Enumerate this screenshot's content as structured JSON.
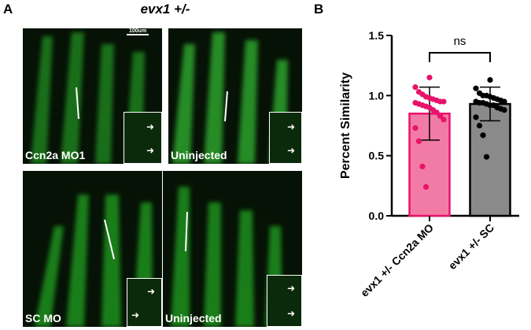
{
  "figure": {
    "panel_a_letter": "A",
    "panel_b_letter": "B",
    "panel_a_title": "evx1 +/-",
    "scale_bar_label": "100um",
    "images": [
      {
        "label": "Ccn2a MO1"
      },
      {
        "label": "Uninjected"
      },
      {
        "label": "SC MO"
      },
      {
        "label": "Uninjected"
      }
    ],
    "colors": {
      "fluorescence": "#2fa52f",
      "background": "#061206",
      "inset_border": "#ffffff"
    }
  },
  "chart_data": {
    "type": "bar",
    "categories": [
      "evx1 +/- Ccn2a MO",
      "evx1 +/- SC"
    ],
    "values": [
      0.85,
      0.93
    ],
    "error": [
      0.22,
      0.14
    ],
    "ylabel": "Percent Similarity",
    "ylim": [
      0.0,
      1.5
    ],
    "yticks": [
      "0.0",
      "0.5",
      "1.0",
      "1.5"
    ],
    "significance_label": "ns",
    "bar_colors": [
      "#f27ba6",
      "#8a8a8a"
    ],
    "point_colors": [
      "#e8136b",
      "#000000"
    ],
    "points": [
      [
        1.07,
        1.03,
        1.01,
        0.99,
        0.98,
        0.97,
        0.96,
        0.95,
        0.95,
        0.94,
        0.93,
        0.92,
        0.91,
        0.9,
        0.88,
        0.86,
        0.83,
        0.8,
        0.73,
        0.62,
        0.41,
        0.24,
        1.15
      ],
      [
        1.06,
        1.02,
        1.0,
        1.0,
        0.99,
        0.98,
        0.97,
        0.96,
        0.95,
        0.95,
        0.94,
        0.94,
        0.93,
        0.92,
        0.92,
        0.9,
        0.89,
        0.88,
        0.82,
        0.75,
        0.67,
        0.49,
        1.13
      ]
    ],
    "grid": false
  }
}
